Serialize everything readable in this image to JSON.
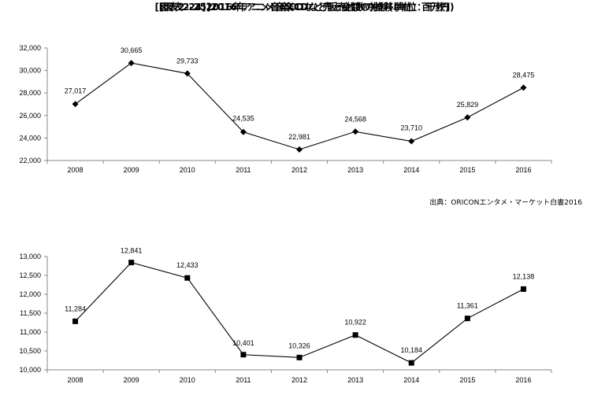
{
  "chart_data": [
    {
      "type": "line",
      "title": "[図表2-24]2016年アニメ音楽CDなど売上金額の推移(単位：百万円)",
      "categories": [
        "2008",
        "2009",
        "2010",
        "2011",
        "2012",
        "2013",
        "2014",
        "2015",
        "2016"
      ],
      "values": [
        27017,
        30665,
        29733,
        24535,
        22981,
        24568,
        23710,
        25829,
        28475
      ],
      "data_labels": [
        "27,017",
        "30,665",
        "29,733",
        "24,535",
        "22,981",
        "24,568",
        "23,710",
        "25,829",
        "28,475"
      ],
      "ylim": [
        22000,
        32000
      ],
      "yticks": [
        22000,
        24000,
        26000,
        28000,
        30000,
        32000
      ],
      "ytick_labels": [
        "22,000",
        "24,000",
        "26,000",
        "28,000",
        "30,000",
        "32,000"
      ],
      "marker": "diamond",
      "grid": false,
      "source": "出典：ORICONエンタメ・マーケット白書2016"
    },
    {
      "type": "line",
      "title": "[図表2-25]2016年アニメ音楽CDなど販売枚数の推移(単位：千枚)",
      "categories": [
        "2008",
        "2009",
        "2010",
        "2011",
        "2012",
        "2013",
        "2014",
        "2015",
        "2016"
      ],
      "values": [
        11284,
        12841,
        12433,
        10401,
        10326,
        10922,
        10184,
        11361,
        12138
      ],
      "data_labels": [
        "11,284",
        "12,841",
        "12,433",
        "10,401",
        "10,326",
        "10,922",
        "10,184",
        "11,361",
        "12,138"
      ],
      "ylim": [
        10000,
        13000
      ],
      "yticks": [
        10000,
        10500,
        11000,
        11500,
        12000,
        12500,
        13000
      ],
      "ytick_labels": [
        "10,000",
        "10,500",
        "11,000",
        "11,500",
        "12,000",
        "12,500",
        "13,000"
      ],
      "marker": "square",
      "grid": false
    }
  ]
}
